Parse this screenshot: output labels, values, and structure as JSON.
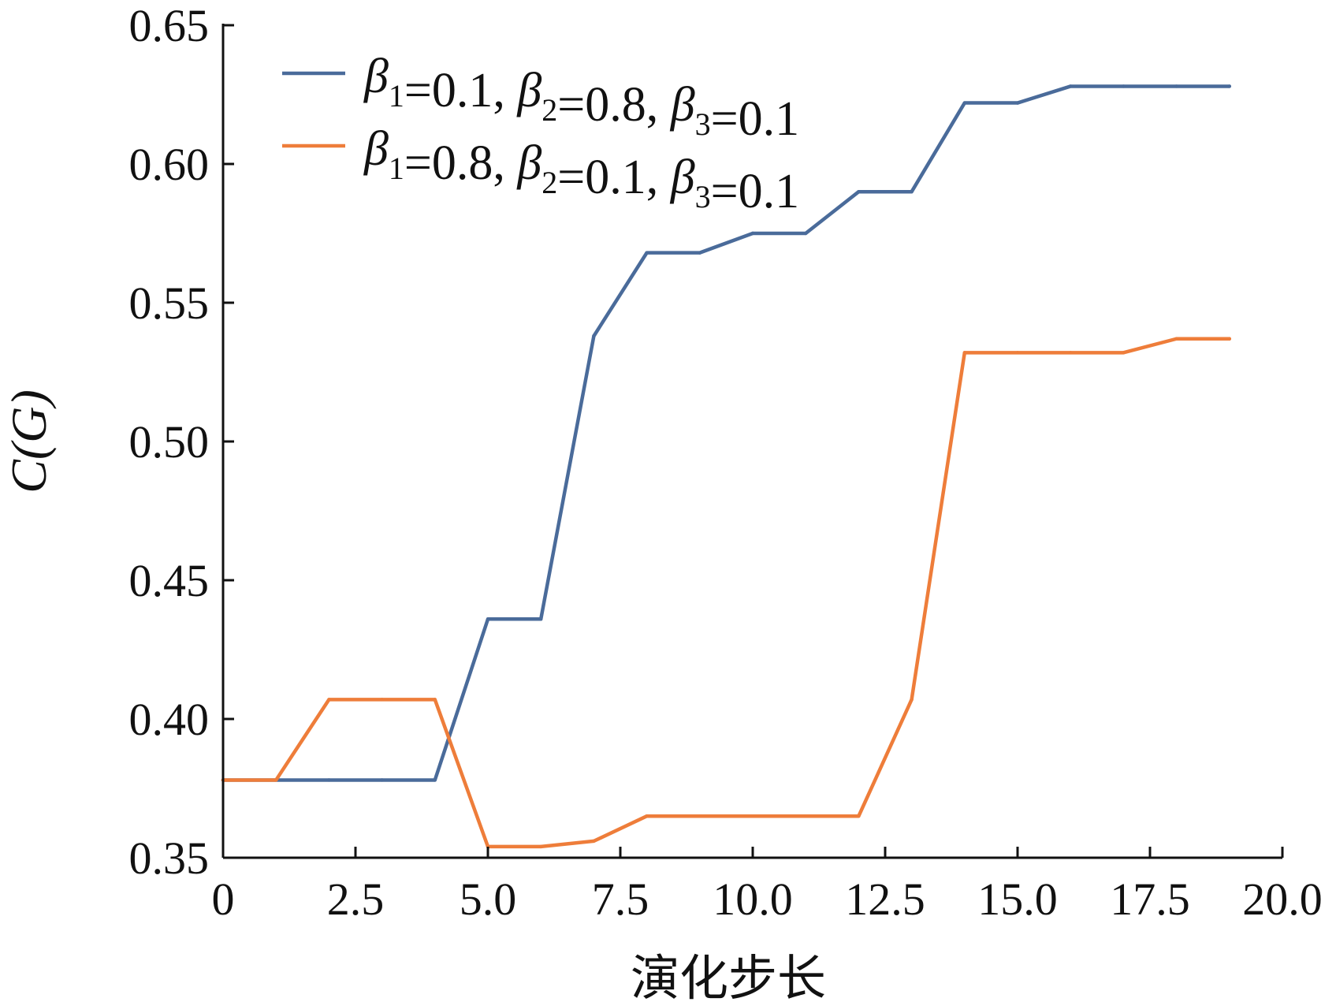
{
  "chart_data": {
    "type": "line",
    "xlabel": "演化步长",
    "ylabel": "C(G)",
    "xlim": [
      0,
      20
    ],
    "ylim": [
      0.35,
      0.65
    ],
    "x_ticks": [
      "0",
      "2.5",
      "5.0",
      "7.5",
      "10.0",
      "12.5",
      "15.0",
      "17.5",
      "20.0"
    ],
    "y_ticks": [
      "0.35",
      "0.40",
      "0.45",
      "0.50",
      "0.55",
      "0.60",
      "0.65"
    ],
    "legend_position": "top-left",
    "grid": false,
    "x": [
      0,
      1,
      2,
      3,
      4,
      5,
      6,
      7,
      8,
      9,
      10,
      11,
      12,
      13,
      14,
      15,
      16,
      17,
      18,
      19
    ],
    "series": [
      {
        "name": "β1=0.1, β2=0.8, β3=0.1",
        "legend": {
          "b1": "0.1",
          "b2": "0.8",
          "b3": "0.1"
        },
        "color": "#4a6b9a",
        "values": [
          0.378,
          0.378,
          0.378,
          0.378,
          0.378,
          0.436,
          0.436,
          0.538,
          0.568,
          0.568,
          0.575,
          0.575,
          0.59,
          0.59,
          0.622,
          0.622,
          0.628,
          0.628,
          0.628,
          0.628
        ]
      },
      {
        "name": "β1=0.8, β2=0.1, β3=0.1",
        "legend": {
          "b1": "0.8",
          "b2": "0.1",
          "b3": "0.1"
        },
        "color": "#ee7d3a",
        "values": [
          0.378,
          0.378,
          0.407,
          0.407,
          0.407,
          0.354,
          0.354,
          0.356,
          0.365,
          0.365,
          0.365,
          0.365,
          0.365,
          0.407,
          0.532,
          0.532,
          0.532,
          0.532,
          0.537,
          0.537
        ]
      }
    ]
  }
}
